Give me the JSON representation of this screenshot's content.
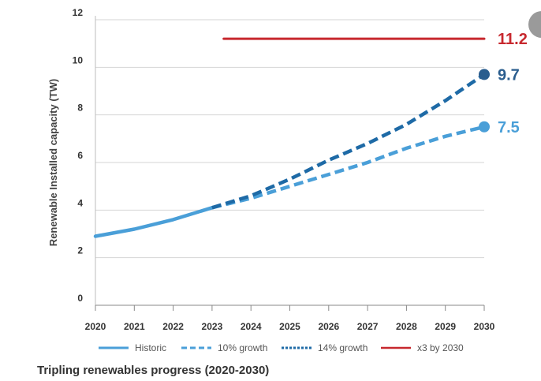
{
  "caption": "Tripling renewables progress (2020-2030)",
  "chart_data": {
    "type": "line",
    "title": "Tripling renewables progress (2020-2030)",
    "xlabel": "",
    "ylabel": "Renewable Installed capacity (TW)",
    "xlim": [
      2020,
      2030
    ],
    "ylim": [
      0,
      12
    ],
    "x_ticks": [
      2020,
      2021,
      2022,
      2023,
      2024,
      2025,
      2026,
      2027,
      2028,
      2029,
      2030
    ],
    "y_ticks": [
      0,
      2,
      4,
      6,
      8,
      10,
      12
    ],
    "grid": "horizontal",
    "legend_position": "bottom",
    "series": [
      {
        "name": "Historic",
        "style": "solid",
        "color": "#4a9fd8",
        "x": [
          2020,
          2021,
          2022,
          2023
        ],
        "y": [
          2.9,
          3.2,
          3.6,
          4.1
        ]
      },
      {
        "name": "10% growth",
        "style": "dashed",
        "color": "#4a9fd8",
        "x": [
          2023,
          2024,
          2025,
          2026,
          2027,
          2028,
          2029,
          2030
        ],
        "y": [
          4.1,
          4.5,
          5.0,
          5.5,
          6.0,
          6.6,
          7.1,
          7.5
        ],
        "end_label": "7.5"
      },
      {
        "name": "14% growth",
        "style": "dotted",
        "color": "#1e6aa6",
        "x": [
          2023,
          2024,
          2025,
          2026,
          2027,
          2028,
          2029,
          2030
        ],
        "y": [
          4.1,
          4.6,
          5.3,
          6.1,
          6.8,
          7.6,
          8.6,
          9.7
        ],
        "end_label": "9.7"
      },
      {
        "name": "x3 by 2030",
        "style": "solid",
        "color": "#c7282e",
        "x": [
          2023.3,
          2030
        ],
        "y": [
          11.2,
          11.2
        ],
        "end_label": "11.2"
      }
    ]
  }
}
